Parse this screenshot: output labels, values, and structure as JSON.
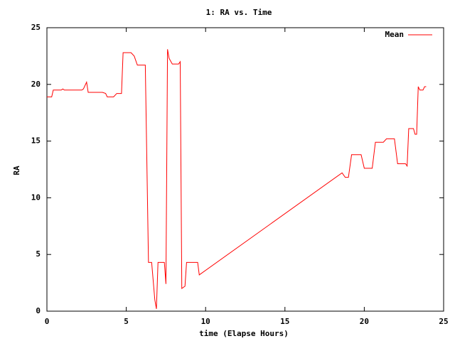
{
  "chart_data": {
    "type": "line",
    "title": "1: RA vs. Time",
    "x_label": "time (Elapse Hours)",
    "y_label": "RA",
    "x": [
      0,
      0.3,
      0.4,
      0.9,
      1.0,
      1.1,
      2.2,
      2.3,
      2.5,
      2.6,
      3.5,
      3.7,
      3.8,
      4.2,
      4.4,
      4.7,
      4.8,
      5.3,
      5.5,
      5.7,
      6.2,
      6.4,
      6.6,
      6.8,
      6.9,
      7.0,
      7.4,
      7.5,
      7.6,
      7.7,
      7.9,
      8.3,
      8.4,
      8.5,
      8.7,
      8.8,
      9.5,
      9.6,
      18.6,
      18.8,
      19.0,
      19.2,
      19.8,
      20.0,
      20.5,
      20.7,
      21.2,
      21.4,
      21.9,
      22.1,
      22.6,
      22.7,
      22.8,
      23.1,
      23.2,
      23.3,
      23.4,
      23.5,
      23.7,
      23.8,
      23.9
    ],
    "series": [
      {
        "name": "Mean",
        "color": "#ff0000",
        "values": [
          18.9,
          18.9,
          19.5,
          19.5,
          19.6,
          19.5,
          19.5,
          19.6,
          20.2,
          19.3,
          19.3,
          19.2,
          18.9,
          18.9,
          19.2,
          19.2,
          22.8,
          22.8,
          22.5,
          21.7,
          21.7,
          4.3,
          4.3,
          1.0,
          0.2,
          4.3,
          4.3,
          2.4,
          23.1,
          22.3,
          21.8,
          21.8,
          22.0,
          2.0,
          2.2,
          4.3,
          4.3,
          3.2,
          12.2,
          11.8,
          11.8,
          13.8,
          13.8,
          12.6,
          12.6,
          14.9,
          14.9,
          15.2,
          15.2,
          13.0,
          13.0,
          12.8,
          16.1,
          16.1,
          15.6,
          15.6,
          19.8,
          19.5,
          19.5,
          19.8,
          19.8
        ]
      }
    ],
    "xlim": [
      0,
      25
    ],
    "xticks": [
      0,
      5,
      10,
      15,
      20,
      25
    ],
    "ylim": [
      0,
      25
    ],
    "yticks": [
      0,
      5,
      10,
      15,
      20,
      25
    ],
    "grid": false,
    "legend_position": "top right"
  }
}
